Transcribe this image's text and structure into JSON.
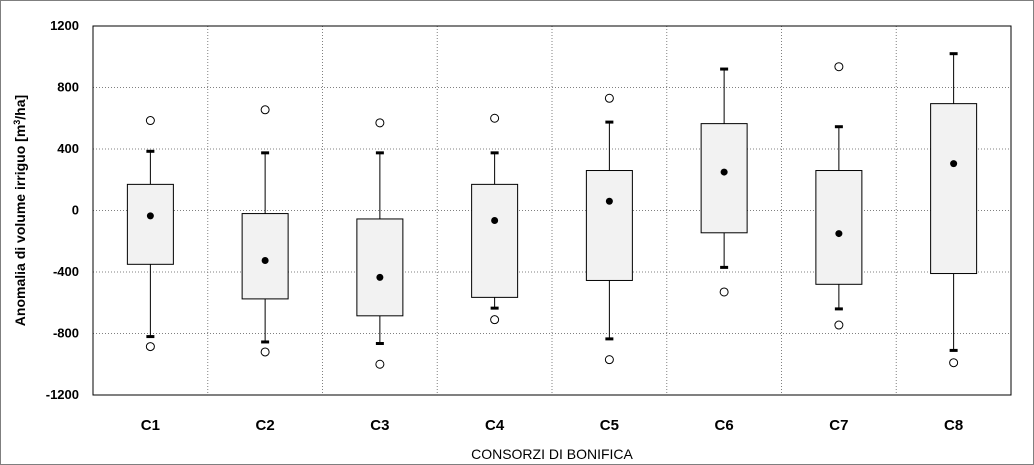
{
  "chart_data": {
    "type": "boxplot",
    "xlabel": "CONSORZI DI BONIFICA",
    "ylabel": {
      "text": "Anomalia di volume irriguo [m",
      "superscript": "3",
      "suffix": "/ha]"
    },
    "ylim": [
      -1200,
      1200
    ],
    "yticks": [
      "1200",
      "800",
      "400",
      "0",
      "-400",
      "-800",
      "-1200"
    ],
    "ytick_values": [
      1200,
      800,
      400,
      0,
      -400,
      -800,
      -1200
    ],
    "grid": true,
    "categories": [
      "C1",
      "C2",
      "C3",
      "C4",
      "C5",
      "C6",
      "C7",
      "C8"
    ],
    "boxes": [
      {
        "category": "C1",
        "q1": -350,
        "q3": 170,
        "whisker_low": -820,
        "whisker_high": 385,
        "mean": -35,
        "outlier_low": -885,
        "outlier_high": 585
      },
      {
        "category": "C2",
        "q1": -575,
        "q3": -20,
        "whisker_low": -855,
        "whisker_high": 375,
        "mean": -325,
        "outlier_low": -920,
        "outlier_high": 655
      },
      {
        "category": "C3",
        "q1": -685,
        "q3": -55,
        "whisker_low": -865,
        "whisker_high": 375,
        "mean": -435,
        "outlier_low": -1000,
        "outlier_high": 570
      },
      {
        "category": "C4",
        "q1": -565,
        "q3": 170,
        "whisker_low": -635,
        "whisker_high": 375,
        "mean": -65,
        "outlier_low": -710,
        "outlier_high": 600
      },
      {
        "category": "C5",
        "q1": -455,
        "q3": 260,
        "whisker_low": -835,
        "whisker_high": 575,
        "mean": 60,
        "outlier_low": -970,
        "outlier_high": 730
      },
      {
        "category": "C6",
        "q1": -145,
        "q3": 565,
        "whisker_low": -370,
        "whisker_high": 920,
        "mean": 250,
        "outlier_low": -530,
        "outlier_high": null
      },
      {
        "category": "C7",
        "q1": -480,
        "q3": 260,
        "whisker_low": -640,
        "whisker_high": 545,
        "mean": -150,
        "outlier_low": -745,
        "outlier_high": 935
      },
      {
        "category": "C8",
        "q1": -410,
        "q3": 695,
        "whisker_low": -910,
        "whisker_high": 1020,
        "mean": 305,
        "outlier_low": -990,
        "outlier_high": null
      }
    ],
    "colors": {
      "box_fill": "#f2f2f2",
      "box_stroke": "#000000",
      "grid": "#808080"
    }
  }
}
